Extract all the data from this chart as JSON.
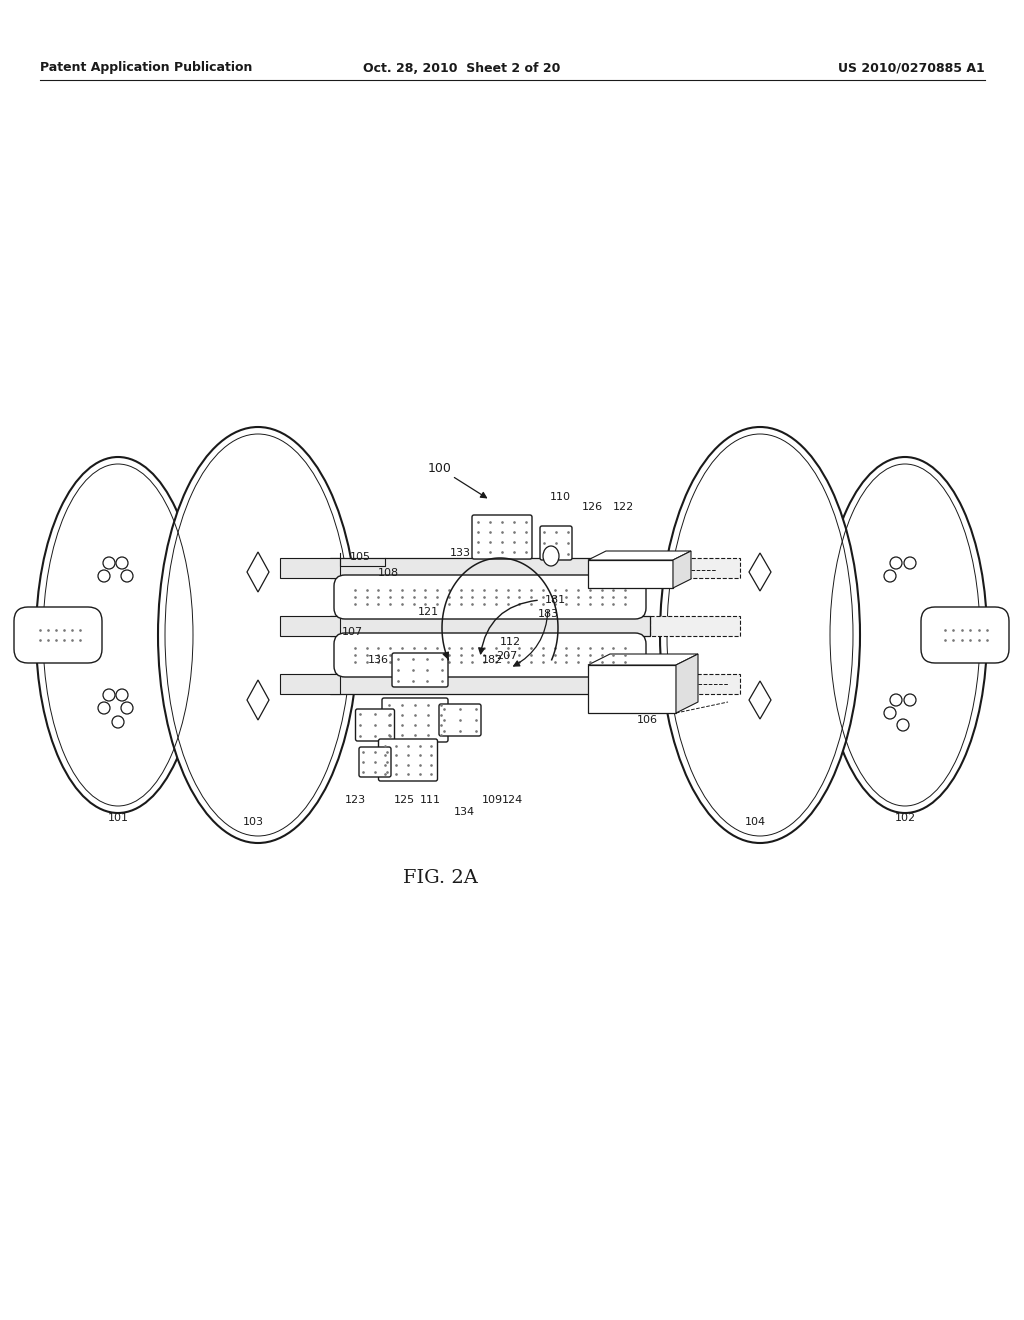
{
  "bg_color": "#ffffff",
  "header_left": "Patent Application Publication",
  "header_mid": "Oct. 28, 2010  Sheet 2 of 20",
  "header_right": "US 2010/0270885 A1",
  "fig_label": "FIG. 2A",
  "line_color": "#1a1a1a",
  "stipple_color": "#777777"
}
